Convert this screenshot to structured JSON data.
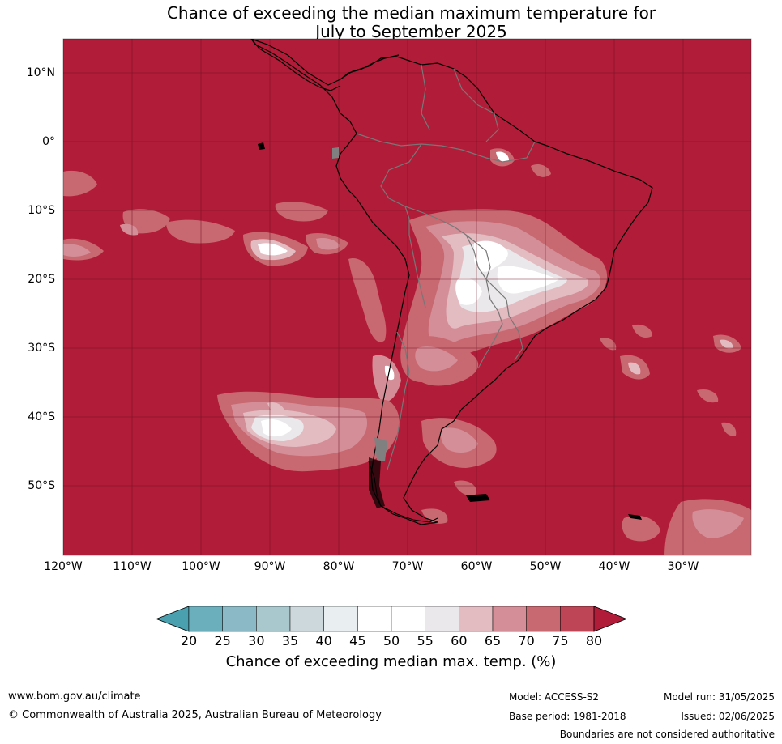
{
  "title": {
    "line1": "Chance of exceeding the median maximum temperature for",
    "line2": "July to September 2025"
  },
  "map": {
    "background_color": "#B11C38",
    "lat_labels": [
      "10°N",
      "0°",
      "10°S",
      "20°S",
      "30°S",
      "40°S",
      "50°S"
    ],
    "lon_labels": [
      "120°W",
      "110°W",
      "100°W",
      "90°W",
      "80°W",
      "70°W",
      "60°W",
      "50°W",
      "40°W",
      "30°W"
    ]
  },
  "colorbar": {
    "ticks": [
      "20",
      "25",
      "30",
      "35",
      "40",
      "45",
      "50",
      "55",
      "60",
      "65",
      "70",
      "75",
      "80"
    ],
    "colors": [
      "#4BA0AF",
      "#6BAFBC",
      "#8BBAC6",
      "#A9C8CD",
      "#CDD8DC",
      "#E9EFF1",
      "#FFFFFF",
      "#FFFFFF",
      "#EAE8EA",
      "#E3BCC2",
      "#D48E97",
      "#C86871",
      "#BD4556",
      "#B11C38"
    ],
    "label": "Chance of exceeding median max. temp. (%)"
  },
  "footer": {
    "website": "www.bom.gov.au/climate",
    "copyright": "© Commonwealth of Australia 2025, Australian Bureau of Meteorology",
    "model": "Model: ACCESS-S2",
    "base_period": "Base period: 1981-2018",
    "model_run": "Model run: 31/05/2025",
    "issued": "Issued: 02/06/2025",
    "disclaimer": "Boundaries are not considered authoritative"
  }
}
